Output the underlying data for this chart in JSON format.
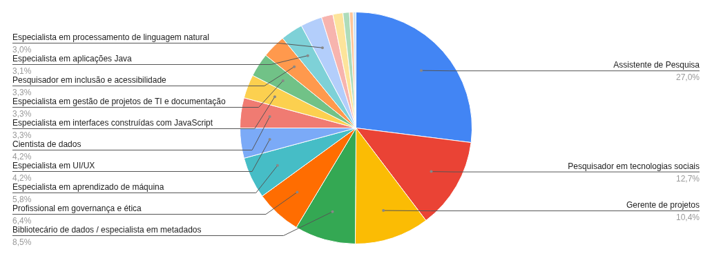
{
  "chart_data": {
    "type": "pie",
    "categories": [
      "Assistente de Pesquisa",
      "Pesquisador em tecnologias sociais",
      "Gerente de projetos",
      "Bibliotecário de dados / especialista em metadados",
      "Profissional em governança e ética",
      "Especialista em aprendizado de máquina",
      "Especialista em UI/UX",
      "Cientista de dados",
      "Especialista em interfaces construídas com JavaScript",
      "Especialista em gestão de projetos de TI e documentação",
      "Pesquisador em inclusão e acessibilidade",
      "Especialista em aplicações Java",
      "Especialista em processamento de linguagem natural",
      null,
      null,
      null,
      null,
      null
    ],
    "values": [
      27.0,
      12.7,
      10.4,
      8.5,
      6.4,
      5.8,
      4.2,
      4.2,
      3.3,
      3.3,
      3.3,
      3.1,
      3.0,
      1.6,
      1.4,
      0.9,
      0.5,
      0.4
    ],
    "value_labels": [
      "27,0%",
      "12,7%",
      "10,4%",
      "8,5%",
      "6,4%",
      "5,8%",
      "4,2%",
      "4,2%",
      "3,3%",
      "3,3%",
      "3,3%",
      "3,1%",
      "3,0%",
      null,
      null,
      null,
      null,
      null
    ],
    "colors": [
      "#4285f4",
      "#ea4335",
      "#fbbc04",
      "#34a853",
      "#ff6d01",
      "#46bdc6",
      "#7baaf7",
      "#f07b72",
      "#fcd04f",
      "#71c287",
      "#ff994d",
      "#7ed1d7",
      "#b3cefb",
      "#f7b4ae",
      "#fde49b",
      "#aedcba",
      "#ffc599",
      "#c6e2f8"
    ],
    "legend": false
  }
}
